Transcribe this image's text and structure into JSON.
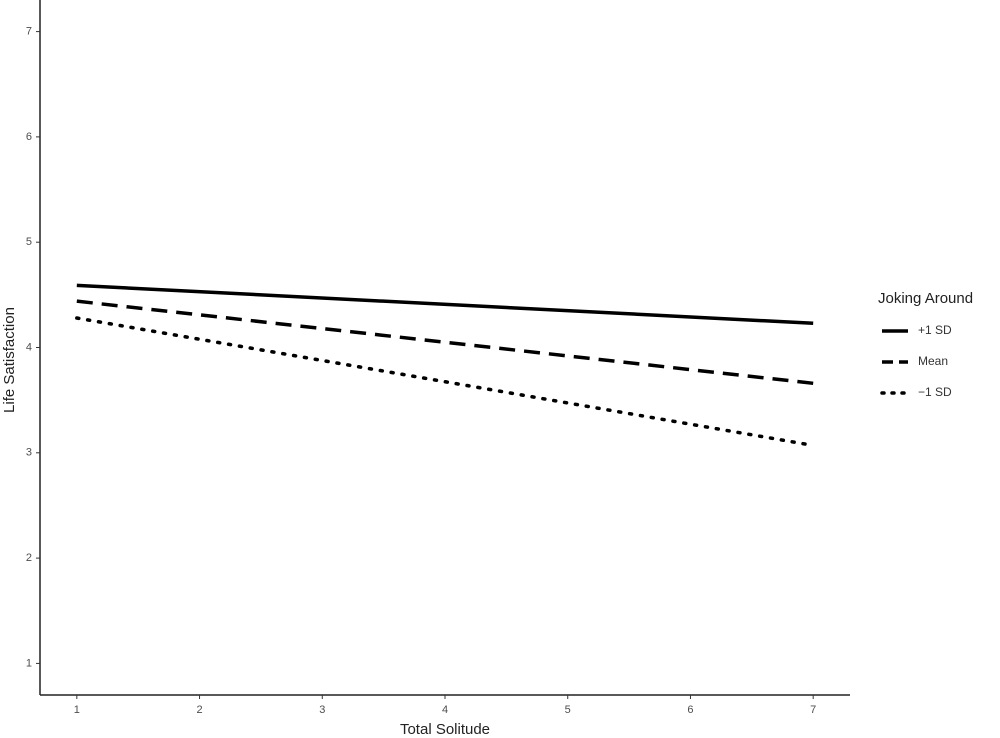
{
  "chart_data": {
    "type": "line",
    "x_label": "Total Solitude",
    "y_label": "Life Satisfaction",
    "xlim": [
      0.7,
      7.3
    ],
    "xticks": [
      1,
      2,
      3,
      4,
      5,
      6,
      7
    ],
    "ylim": [
      0.7,
      7.3
    ],
    "yticks": [
      1,
      2,
      3,
      4,
      5,
      6,
      7
    ],
    "legend_title": "Joking Around",
    "legend_position": "right",
    "x": [
      1,
      7
    ],
    "series": [
      {
        "name": "+1 SD",
        "color": "#000000",
        "dash": "solid",
        "values": [
          4.59,
          4.23
        ]
      },
      {
        "name": "Mean",
        "color": "#000000",
        "dash": "dashed",
        "values": [
          4.44,
          3.66
        ]
      },
      {
        "name": "−1 SD",
        "color": "#000000",
        "dash": "dotted",
        "values": [
          4.28,
          3.07
        ]
      }
    ]
  }
}
